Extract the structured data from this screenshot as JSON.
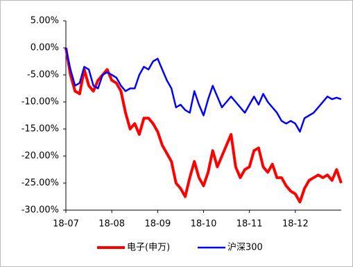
{
  "chart_data": {
    "type": "line",
    "categories": [
      "18-07",
      null,
      null,
      null,
      null,
      null,
      null,
      null,
      null,
      null,
      "18-08",
      null,
      null,
      null,
      null,
      null,
      null,
      null,
      null,
      null,
      "18-09",
      null,
      null,
      null,
      null,
      null,
      null,
      null,
      null,
      null,
      "18-10",
      null,
      null,
      null,
      null,
      null,
      null,
      null,
      null,
      null,
      "18-11",
      null,
      null,
      null,
      null,
      null,
      null,
      null,
      null,
      null,
      "18-12",
      null,
      null,
      null,
      null,
      null,
      null,
      null,
      null,
      null,
      null
    ],
    "series": [
      {
        "name": "电子(申万)",
        "color": "#ff0000",
        "values": [
          0,
          -5,
          -8,
          -8.5,
          -4,
          -7,
          -8,
          -6,
          -5,
          -4,
          -6,
          -6.5,
          -8,
          -12,
          -15,
          -14,
          -16,
          -13,
          -13,
          -14,
          -15.5,
          -18,
          -19.5,
          -21,
          -25,
          -26,
          -27.5,
          -24,
          -21,
          -24,
          -25.5,
          -23,
          -19,
          -22,
          -20,
          -18,
          -16,
          -22,
          -24,
          -22.5,
          -22,
          -19,
          -18.5,
          -22,
          -23,
          -21.5,
          -24,
          -24,
          -25.5,
          -26.5,
          -27,
          -28.5,
          -26,
          -24.5,
          -24,
          -23.5,
          -24,
          -23.5,
          -24.5,
          -22.5,
          -25
        ]
      },
      {
        "name": "沪深300",
        "color": "#0000ff",
        "values": [
          0,
          -4,
          -7,
          -6.5,
          -3.5,
          -4,
          -7,
          -7.5,
          -5,
          -4.5,
          -5,
          -5.5,
          -7,
          -8,
          -7.5,
          -7.5,
          -5,
          -3.5,
          -4,
          -2.5,
          -2,
          -4,
          -6,
          -7.5,
          -11,
          -10.5,
          -11.5,
          -12,
          -8,
          -10.5,
          -12.5,
          -9.5,
          -7,
          -9,
          -11,
          -10,
          -9,
          -10,
          -11,
          -12,
          -10.5,
          -9,
          -10.5,
          -8.5,
          -10,
          -11,
          -12,
          -13.5,
          -14,
          -13.5,
          -14,
          -15.5,
          -13,
          -12.5,
          -12,
          -11,
          -10,
          -9,
          -9.5,
          -9.2,
          -9.5
        ]
      }
    ],
    "ylim": [
      -30,
      5
    ],
    "yticks": [
      {
        "value": -30,
        "label": "-30.00%"
      },
      {
        "value": -25,
        "label": "-25.00%"
      },
      {
        "value": -20,
        "label": "-20.00%"
      },
      {
        "value": -15,
        "label": "-15.00%"
      },
      {
        "value": -10,
        "label": "-10.00%"
      },
      {
        "value": -5,
        "label": "-5.00%"
      },
      {
        "value": 0,
        "label": "0.00%"
      },
      {
        "value": 5,
        "label": "5.00%"
      }
    ],
    "grid": false,
    "legend": "bottom"
  }
}
